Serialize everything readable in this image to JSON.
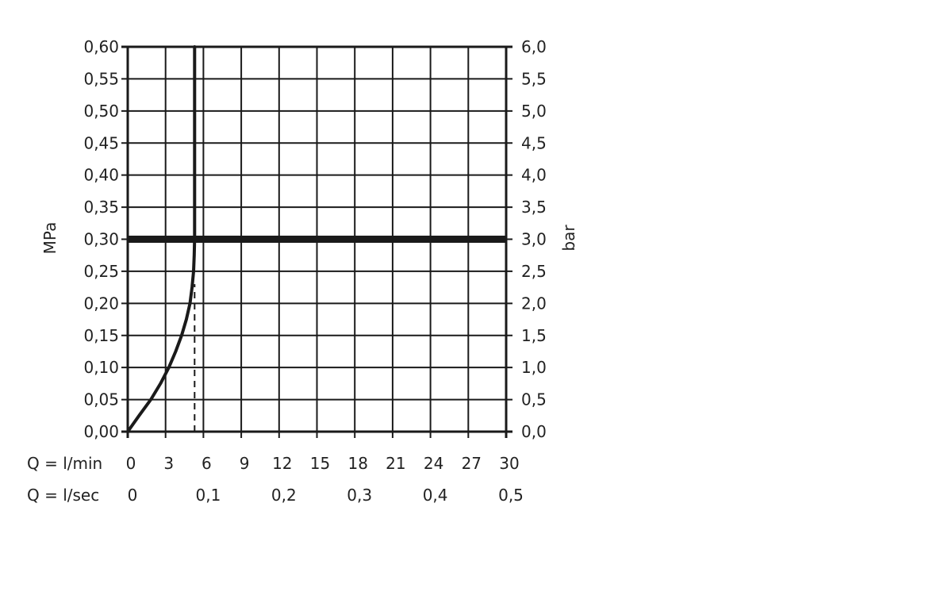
{
  "chart_data": {
    "type": "line",
    "y_left": {
      "label": "MPa",
      "ylim": [
        0,
        0.6
      ],
      "ticks": [
        "0,00",
        "0,05",
        "0,10",
        "0,15",
        "0,20",
        "0,25",
        "0,30",
        "0,35",
        "0,40",
        "0,45",
        "0,50",
        "0,55",
        "0,60"
      ]
    },
    "y_right": {
      "label": "bar",
      "ylim": [
        0,
        6
      ],
      "ticks": [
        "0,0",
        "0,5",
        "1,0",
        "1,5",
        "2,0",
        "2,5",
        "3,0",
        "3,5",
        "4,0",
        "4,5",
        "5,0",
        "5,5",
        "6,0"
      ]
    },
    "x_primary": {
      "label": "Q = l/min",
      "xlim": [
        0,
        30
      ],
      "ticks": [
        "0",
        "3",
        "6",
        "9",
        "12",
        "15",
        "18",
        "21",
        "24",
        "27",
        "30"
      ]
    },
    "x_secondary": {
      "label": "Q = l/sec",
      "ticks": [
        "0",
        "0,1",
        "0,2",
        "0,3",
        "0,4",
        "0,5"
      ]
    },
    "grid": true,
    "series": [
      {
        "style": "solid-curve",
        "color": "#1a1a1a",
        "points": [
          [
            0,
            0
          ],
          [
            0.9,
            0.025
          ],
          [
            1.83,
            0.05
          ],
          [
            2.6,
            0.075
          ],
          [
            3.26,
            0.1
          ],
          [
            3.8,
            0.125
          ],
          [
            4.27,
            0.15
          ],
          [
            4.65,
            0.175
          ],
          [
            4.94,
            0.2
          ],
          [
            5.1,
            0.225
          ],
          [
            5.22,
            0.25
          ],
          [
            5.27,
            0.275
          ],
          [
            5.3,
            0.3
          ],
          [
            5.3,
            0.6
          ]
        ]
      },
      {
        "style": "dashed",
        "color": "#1a1a1a",
        "points": [
          [
            5.3,
            0
          ],
          [
            5.3,
            0.23
          ]
        ]
      },
      {
        "style": "thick-horizontal",
        "color": "#1a1a1a",
        "points": [
          [
            0,
            0.3
          ],
          [
            30,
            0.3
          ]
        ]
      }
    ]
  }
}
